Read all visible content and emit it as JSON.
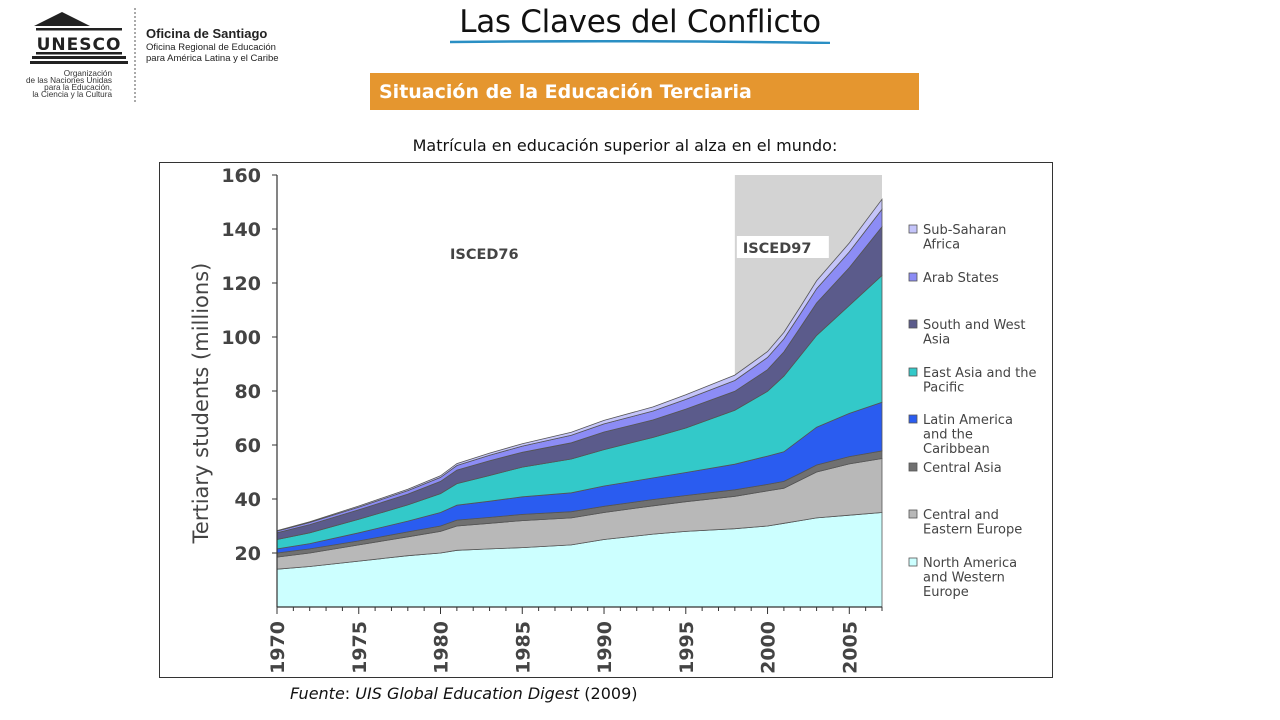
{
  "header": {
    "org_name": "Oficina de Santiago",
    "org_subtitle_1": "Oficina Regional de Educación",
    "org_subtitle_2": "para América Latina y el Caribe",
    "unesco_word": "UNESCO",
    "unesco_caption_1": "Organización",
    "unesco_caption_2": "de las Naciones Unidas",
    "unesco_caption_3": "para la Educación,",
    "unesco_caption_4": "la Ciencia y la Cultura",
    "title": "Las Claves del Conflicto",
    "section": "Situación de la Educación Terciaria",
    "subtitle": "Matrícula en educación superior al alza en el mundo:"
  },
  "source": {
    "prefix": "Fuente",
    "colon": ": ",
    "publication": "UIS Global Education Digest",
    "year": " (2009)"
  },
  "colors": {
    "banner": "#e5962f",
    "underline": "#2a8fc4",
    "shaded_period": "#d3d3d3"
  },
  "chart_data": {
    "type": "area",
    "stacked": true,
    "ylabel": "Tertiary students (millions)",
    "xlabel": "",
    "ylim": [
      0,
      160
    ],
    "xlim": [
      1970,
      2007
    ],
    "yticks": [
      20,
      40,
      60,
      80,
      100,
      120,
      140,
      160
    ],
    "xticks": [
      1970,
      1975,
      1980,
      1985,
      1990,
      1995,
      2000,
      2005
    ],
    "grid": false,
    "legend_position": "right",
    "annotations": [
      {
        "text": "ISCED76",
        "x": 1984
      },
      {
        "text": "ISCED97",
        "x": 2001,
        "shaded_from": 1998,
        "shaded_to": 2007
      }
    ],
    "x": [
      1970,
      1972,
      1975,
      1978,
      1980,
      1981,
      1983,
      1985,
      1988,
      1990,
      1993,
      1995,
      1998,
      2000,
      2001,
      2002,
      2003,
      2005,
      2007
    ],
    "series": [
      {
        "name": "North America and Western Europe",
        "color": "#ccffff",
        "values": [
          14,
          15,
          17,
          19,
          20,
          21,
          21.5,
          22,
          23,
          25,
          27,
          28,
          29,
          30,
          31,
          32,
          33,
          34,
          35
        ]
      },
      {
        "name": "Central and Eastern Europe",
        "color": "#b8b8b8",
        "values": [
          4.5,
          5,
          6,
          7,
          8,
          9,
          9.5,
          10,
          10,
          10,
          10.5,
          11,
          12,
          13,
          13,
          15,
          17,
          19,
          20
        ]
      },
      {
        "name": "Central Asia",
        "color": "#707070",
        "values": [
          1.5,
          1.5,
          1.5,
          1.8,
          2,
          2.2,
          2.2,
          2.3,
          2.3,
          2.3,
          2.3,
          2.3,
          2.4,
          2.4,
          2.5,
          2.5,
          2.6,
          2.7,
          2.8
        ]
      },
      {
        "name": "Latin America and the Caribbean",
        "color": "#2a5cf0",
        "values": [
          1.5,
          2,
          3,
          4,
          5,
          5.5,
          6,
          6.5,
          7,
          7.5,
          8,
          8.5,
          9.5,
          10.5,
          11,
          12.5,
          14,
          16,
          18
        ]
      },
      {
        "name": "East Asia and the Pacific",
        "color": "#33c9c9",
        "values": [
          3.5,
          4,
          5,
          6,
          7,
          8,
          9.5,
          11,
          12.5,
          13.5,
          15,
          16.5,
          20,
          24,
          28,
          31,
          34,
          40,
          47
        ]
      },
      {
        "name": "South and West Asia",
        "color": "#5b5b8b",
        "values": [
          2.5,
          3,
          3.5,
          4,
          4.5,
          5,
          5.5,
          5.5,
          6,
          6.5,
          6.5,
          7,
          7,
          8,
          9,
          10.5,
          12,
          14,
          18
        ]
      },
      {
        "name": "Arab States",
        "color": "#8c8cf5",
        "values": [
          0.6,
          0.8,
          1,
          1.3,
          1.5,
          1.7,
          2,
          2.3,
          2.8,
          3,
          3.3,
          3.6,
          4,
          4.5,
          4.8,
          5,
          5.3,
          5.8,
          6.5
        ]
      },
      {
        "name": "Sub-Saharan Africa",
        "color": "#c4c4fa",
        "values": [
          0.2,
          0.3,
          0.4,
          0.5,
          0.6,
          0.7,
          0.8,
          0.9,
          1.1,
          1.3,
          1.5,
          1.7,
          2,
          2.2,
          2.4,
          2.6,
          2.9,
          3.3,
          3.7
        ]
      }
    ],
    "legend": [
      {
        "lines": [
          "Sub-Saharan",
          "Africa"
        ],
        "color": "#c4c4fa"
      },
      {
        "lines": [
          "Arab States"
        ],
        "color": "#8c8cf5"
      },
      {
        "lines": [
          "South and West",
          "Asia"
        ],
        "color": "#5b5b8b"
      },
      {
        "lines": [
          "East Asia and the",
          "Pacific"
        ],
        "color": "#33c9c9"
      },
      {
        "lines": [
          "Latin America",
          "and the",
          "Caribbean"
        ],
        "color": "#2a5cf0"
      },
      {
        "lines": [
          "Central Asia"
        ],
        "color": "#707070"
      },
      {
        "lines": [
          "Central and",
          "Eastern Europe"
        ],
        "color": "#b8b8b8"
      },
      {
        "lines": [
          "North America",
          "and Western",
          "Europe"
        ],
        "color": "#ccffff"
      }
    ]
  }
}
